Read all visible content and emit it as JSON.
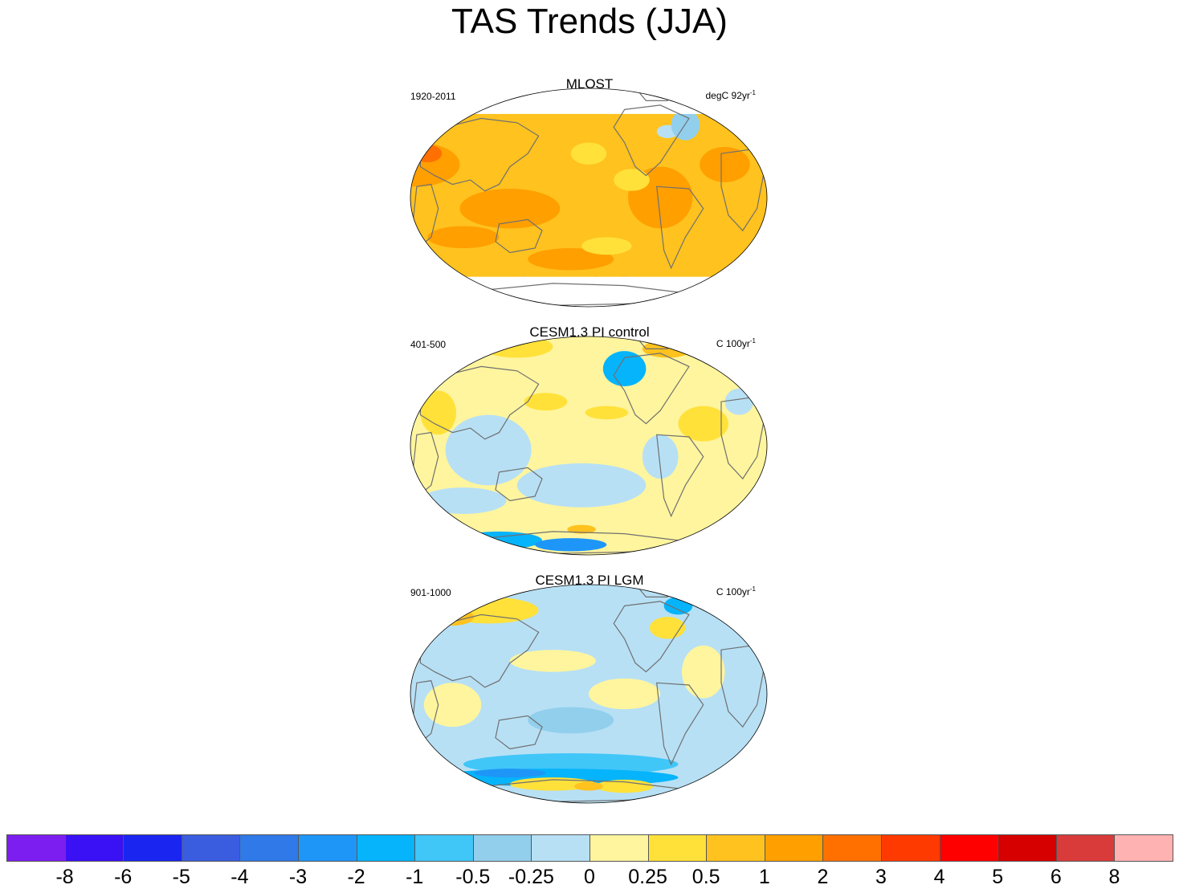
{
  "title": "TAS Trends (JJA)",
  "panels": [
    {
      "title": "MLOST",
      "period": "1920-2011",
      "units_base": "degC 92yr",
      "units_exp": "-1",
      "regime": "warm"
    },
    {
      "title": "CESM1.3 PI control",
      "period": "401-500",
      "units_base": "C 100yr",
      "units_exp": "-1",
      "regime": "mixed"
    },
    {
      "title": "CESM1.3 PI LGM",
      "period": "901-1000",
      "units_base": "C 100yr",
      "units_exp": "-1",
      "regime": "cool"
    }
  ],
  "colorbar": {
    "colors": [
      "#7c1eef",
      "#3a10f5",
      "#1a26f0",
      "#3a5de0",
      "#2f79e8",
      "#1e96f8",
      "#05b4fb",
      "#41c6f8",
      "#92cfec",
      "#b7e0f5",
      "#fff59e",
      "#ffe13a",
      "#ffc21e",
      "#ff9f00",
      "#ff7000",
      "#ff3a00",
      "#ff0000",
      "#d60000",
      "#d93b3b",
      "#ffb2b2"
    ],
    "labels": [
      "-8",
      "-6",
      "-5",
      "-4",
      "-3",
      "-2",
      "-1",
      "-0.5",
      "-0.25",
      "0",
      "0.25",
      "0.5",
      "1",
      "2",
      "3",
      "4",
      "5",
      "6",
      "8"
    ]
  }
}
